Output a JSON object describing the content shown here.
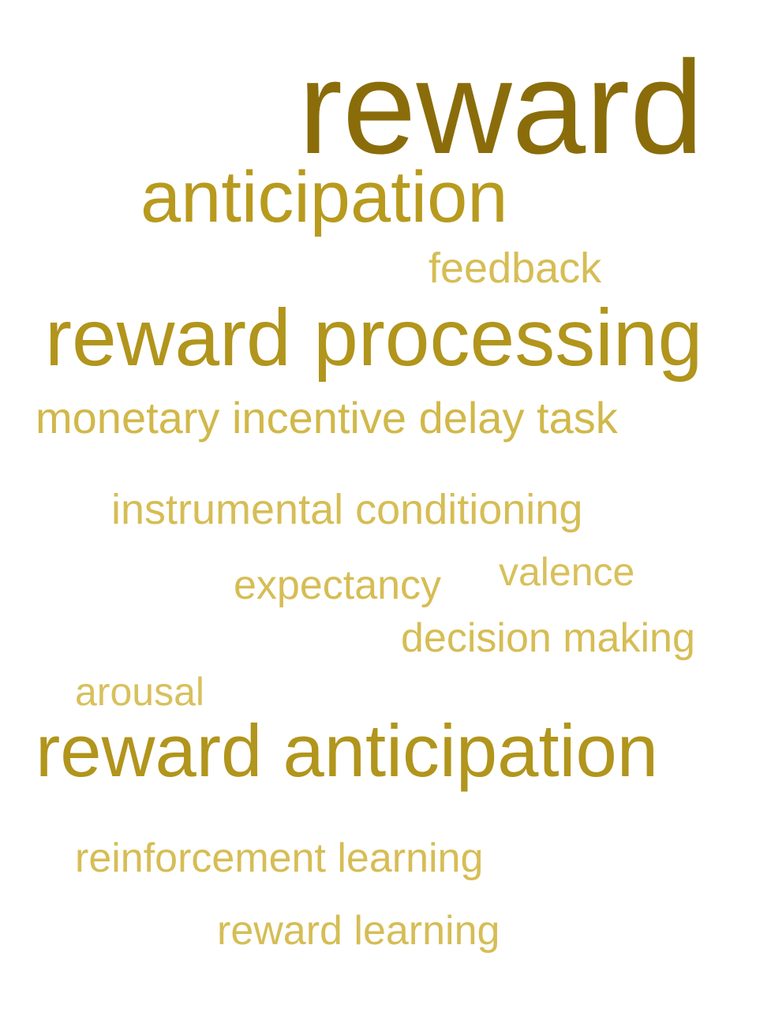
{
  "cloud": {
    "background_color": "#ffffff",
    "words": {
      "reward": {
        "text": "reward",
        "color": "#8a6d0a"
      },
      "anticipation": {
        "text": "anticipation",
        "color": "#b89a1e"
      },
      "feedback": {
        "text": "feedback",
        "color": "#d6bd55"
      },
      "reward_processing": {
        "text": "reward processing",
        "color": "#b1951c"
      },
      "monetary_incentive_delay_task": {
        "text": "monetary incentive delay task",
        "color": "#d1b84a"
      },
      "instrumental_conditioning": {
        "text": "instrumental conditioning",
        "color": "#d6bd55"
      },
      "valence": {
        "text": "valence",
        "color": "#d8c05c"
      },
      "expectancy": {
        "text": "expectancy",
        "color": "#d6bd55"
      },
      "decision_making": {
        "text": "decision making",
        "color": "#d6bd55"
      },
      "arousal": {
        "text": "arousal",
        "color": "#d8c05c"
      },
      "reward_anticipation": {
        "text": "reward anticipation",
        "color": "#b1951c"
      },
      "reinforcement_learning": {
        "text": "reinforcement learning",
        "color": "#d6bd55"
      },
      "reward_learning": {
        "text": "reward learning",
        "color": "#d6bd55"
      }
    }
  }
}
